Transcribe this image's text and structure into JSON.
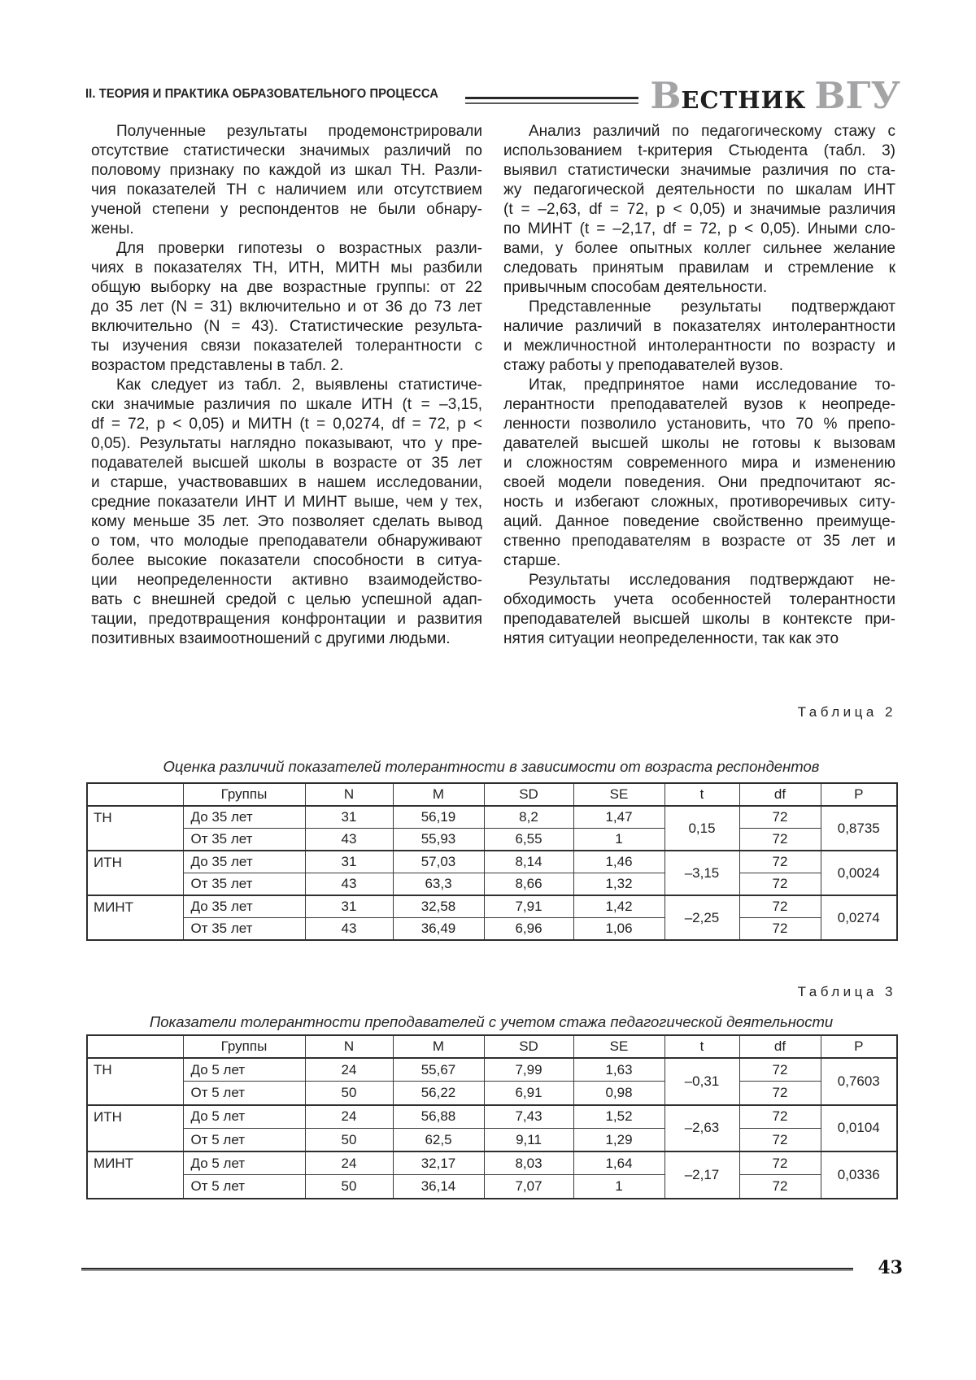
{
  "page": {
    "section_header": "II. ТЕОРИЯ И ПРАКТИКА ОБРАЗОВАТЕЛЬНОГО ПРОЦЕССА",
    "journal_logo": {
      "initial": "В",
      "name_rest": "ЕСТНИК",
      "acronym": "ВГУ"
    },
    "page_number": "43",
    "colors": {
      "text": "#1c1c1c",
      "logo_gray": "#a4a4a6",
      "table_border": "#3a3a3a"
    }
  },
  "article": {
    "left_column": [
      [
        "Полученные результаты продемонстрировали",
        "отсутствие статистически значимых различий по",
        "половому признаку по каждой из шкал ТН. Разли-",
        "чия показателей ТН с наличием или отсутствием",
        "ученой степени у респондентов не были обнару-",
        "жены."
      ],
      [
        "Для проверки гипотезы о возрастных разли-",
        "чиях в показателях ТН, ИТН, МИТН мы разбили",
        "общую выборку на две возрастные группы: от 22",
        "до 35 лет (N = 31) включительно и от 36 до 73 лет",
        "включительно (N = 43). Статистические результа-",
        "ты изучения связи показателей толерантности с",
        "возрастом представлены в табл. 2."
      ],
      [
        "Как следует из табл. 2, выявлены статистиче-",
        "ски значимые различия по шкале ИТН (t = –3,15,",
        "df = 72, p < 0,05) и МИТН (t = 0,0274, df = 72, p <",
        "0,05). Результаты наглядно показывают, что у пре-",
        "подавателей высшей школы в возрасте от 35 лет",
        "и старше, участвовавших в нашем исследовании,",
        "средние показатели ИНТ И МИНТ выше, чем у тех,",
        "кому меньше 35 лет. Это позволяет сделать вывод",
        "о том, что молодые преподаватели обнаруживают",
        "более высокие показатели способности в ситуа-",
        "ции неопределенности активно взаимодейство-",
        "вать с внешней средой с целью успешной адап-",
        "тации, предотвращения конфронтации и развития",
        "позитивных взаимоотношений с другими людьми."
      ]
    ],
    "right_column": [
      [
        "Анализ различий по педагогическому стажу с",
        "использованием t-критерия Стьюдента (табл. 3)",
        "выявил статистически значимые различия по ста-",
        "жу педагогической деятельности по шкалам ИНТ",
        "(t = –2,63, df = 72, p < 0,05) и значимые различия",
        "по МИНТ (t = –2,17, df = 72, p < 0,05). Иными сло-",
        "вами, у более опытных коллег сильнее желание",
        "следовать принятым правилам и стремление к",
        "привычным способам деятельности."
      ],
      [
        "Представленные результаты подтверждают",
        "наличие различий в показателях интолерантности",
        "и межличностной интолерантности по возрасту и",
        "стажу работы у преподавателей вузов."
      ],
      [
        "Итак, предпринятое нами исследование то-",
        "лерантности преподавателей вузов к неопреде-",
        "ленности позволило установить, что 70 % препо-",
        "давателей высшей школы не готовы к вызовам",
        "и сложностям современного мира и изменению",
        "своей модели поведения. Они предпочитают яс-",
        "ность и избегают сложных, противоречивых ситу-",
        "аций. Данное поведение свойственно преимуще-",
        "ственно преподавателям в возрасте от 35 лет и",
        "старше."
      ],
      [
        "Результаты исследования подтверждают не-",
        "обходимость учета особенностей толерантности",
        "преподавателей высшей школы в контексте при-",
        "нятия ситуации неопределенности, так как это"
      ]
    ]
  },
  "tables": [
    {
      "label": "Таблица 2",
      "caption": "Оценка различий показателей толерантности в зависимости от возраста респондентов",
      "col_headers": [
        "",
        "Группы",
        "N",
        "M",
        "SD",
        "SE",
        "t",
        "df",
        "P"
      ],
      "groups": [
        {
          "scale": "ТН",
          "rows": [
            [
              "До 35 лет",
              "31",
              "56,19",
              "8,2",
              "1,47",
              "72"
            ],
            [
              "От 35 лет",
              "43",
              "55,93",
              "6,55",
              "1",
              "72"
            ]
          ],
          "t": "0,15",
          "p": "0,8735"
        },
        {
          "scale": "ИТН",
          "rows": [
            [
              "До 35 лет",
              "31",
              "57,03",
              "8,14",
              "1,46",
              "72"
            ],
            [
              "От 35 лет",
              "43",
              "63,3",
              "8,66",
              "1,32",
              "72"
            ]
          ],
          "t": "–3,15",
          "p": "0,0024"
        },
        {
          "scale": "МИНТ",
          "rows": [
            [
              "До 35 лет",
              "31",
              "32,58",
              "7,91",
              "1,42",
              "72"
            ],
            [
              "От 35 лет",
              "43",
              "36,49",
              "6,96",
              "1,06",
              "72"
            ]
          ],
          "t": "–2,25",
          "p": "0,0274"
        }
      ]
    },
    {
      "label": "Таблица 3",
      "caption": "Показатели толерантности преподавателей с учетом стажа педагогической деятельности",
      "col_headers": [
        "",
        "Группы",
        "N",
        "M",
        "SD",
        "SE",
        "t",
        "df",
        "P"
      ],
      "groups": [
        {
          "scale": "ТН",
          "rows": [
            [
              "До 5 лет",
              "24",
              "55,67",
              "7,99",
              "1,63",
              "72"
            ],
            [
              "От 5 лет",
              "50",
              "56,22",
              "6,91",
              "0,98",
              "72"
            ]
          ],
          "t": "–0,31",
          "p": "0,7603"
        },
        {
          "scale": "ИТН",
          "rows": [
            [
              "До 5 лет",
              "24",
              "56,88",
              "7,43",
              "1,52",
              "72"
            ],
            [
              "От 5 лет",
              "50",
              "62,5",
              "9,11",
              "1,29",
              "72"
            ]
          ],
          "t": "–2,63",
          "p": "0,0104"
        },
        {
          "scale": "МИНТ",
          "rows": [
            [
              "До 5 лет",
              "24",
              "32,17",
              "8,03",
              "1,64",
              "72"
            ],
            [
              "От 5 лет",
              "50",
              "36,14",
              "7,07",
              "1",
              "72"
            ]
          ],
          "t": "–2,17",
          "p": "0,0336"
        }
      ]
    }
  ]
}
